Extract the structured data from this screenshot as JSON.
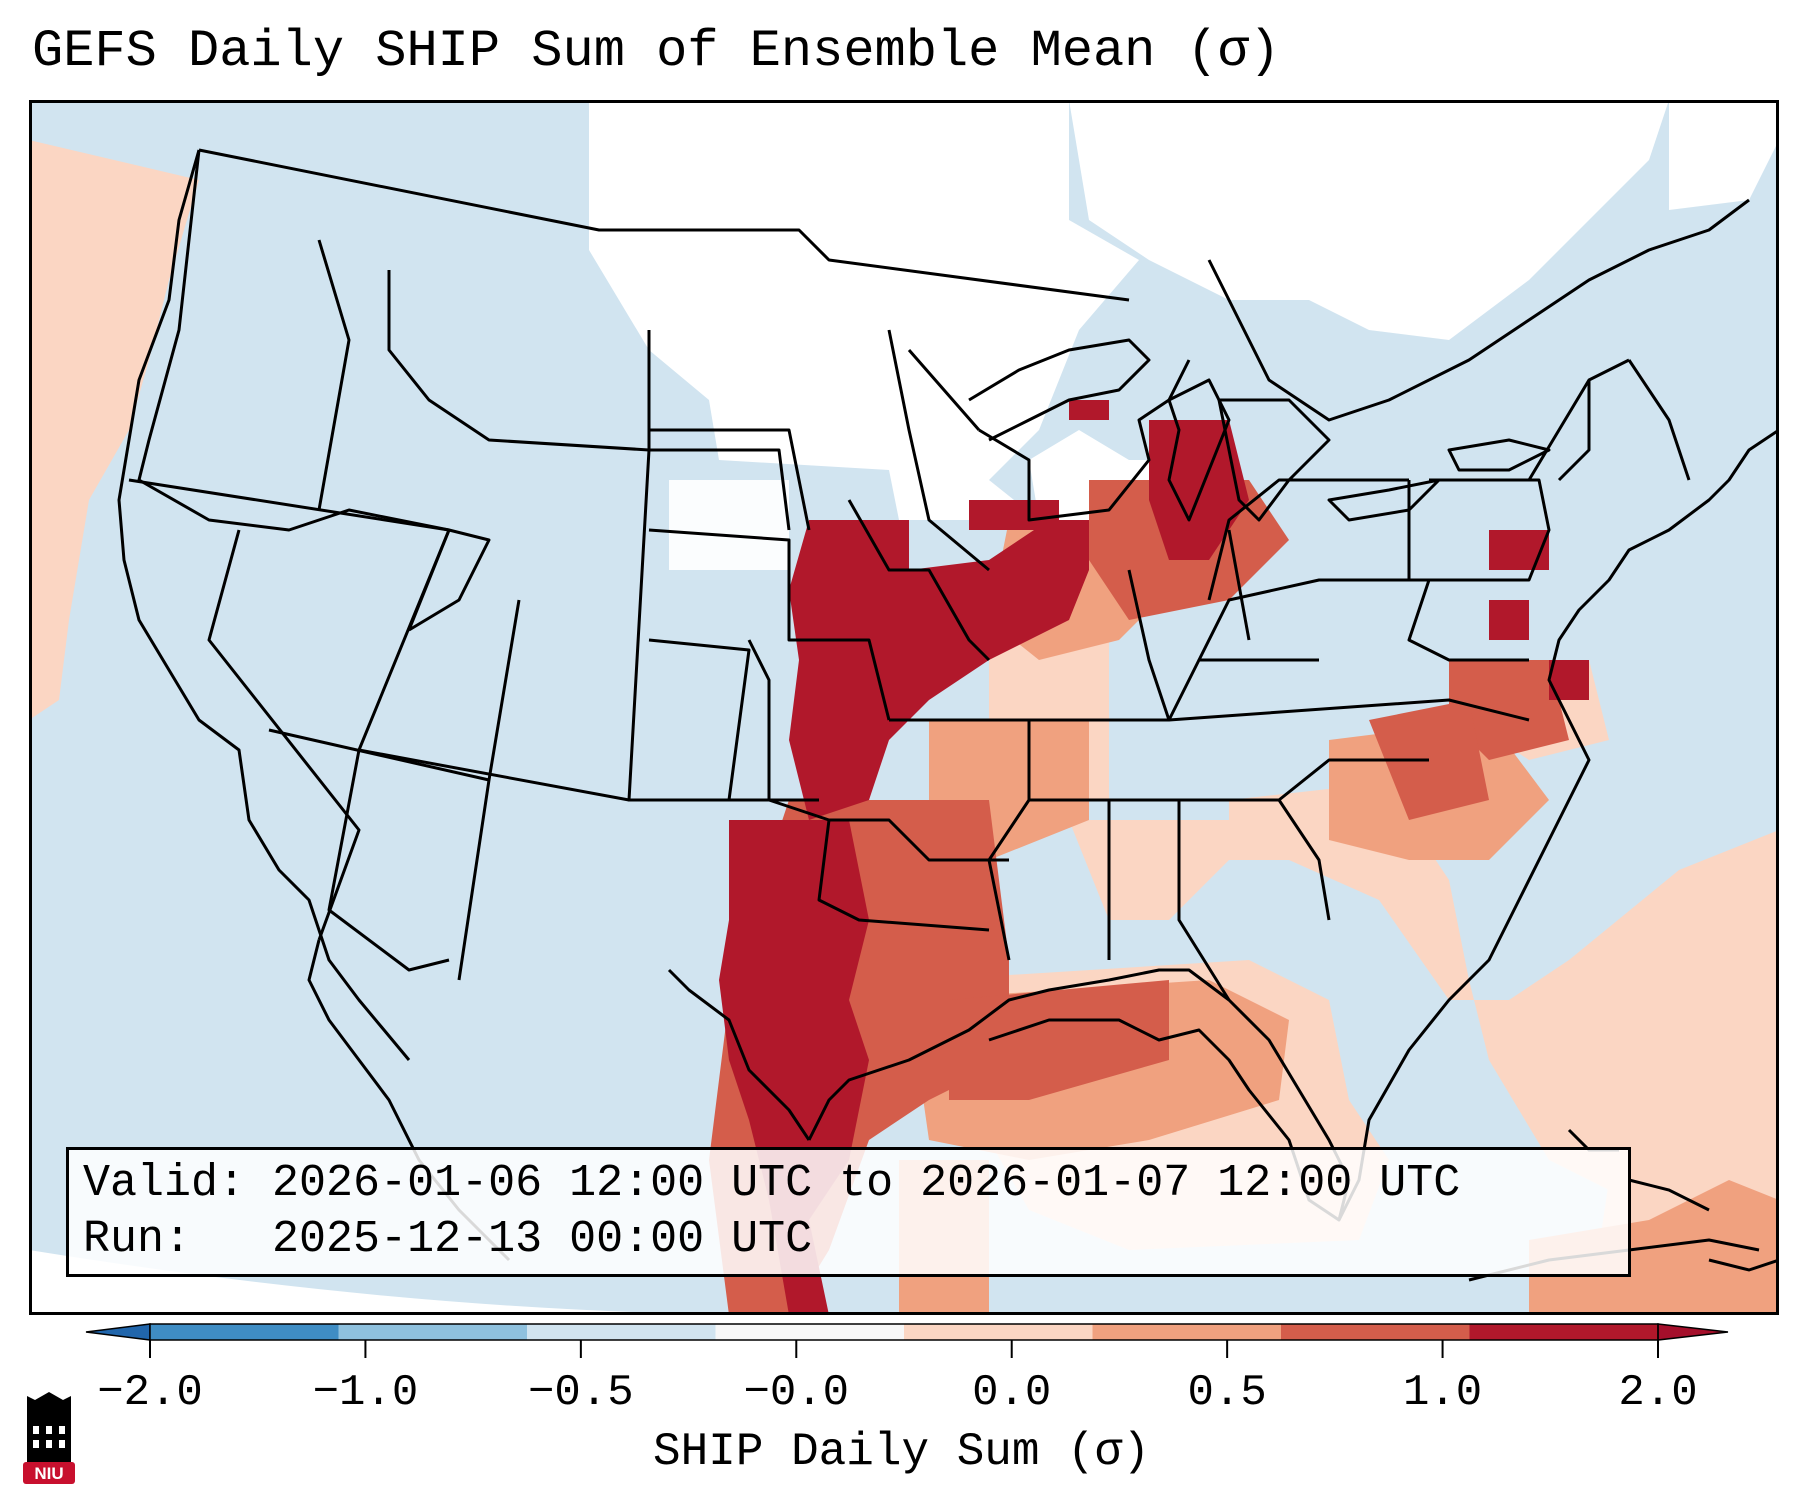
{
  "title": "GEFS Daily SHIP Sum of Ensemble Mean (σ)",
  "info": {
    "valid_label": "Valid:",
    "valid_value": "2026-01-06 12:00 UTC to 2026-01-07 12:00 UTC",
    "run_label": "Run:",
    "run_value": "2025-12-13 00:00 UTC"
  },
  "colorbar": {
    "title": "SHIP Daily Sum (σ)",
    "ticks": [
      "−2.0",
      "−1.0",
      "−0.5",
      "−0.0",
      "0.0",
      "0.5",
      "1.0",
      "2.0"
    ],
    "colors": [
      "#3f8dc4",
      "#8fc1de",
      "#d1e4f0",
      "#f7f7f7",
      "#fbd6c3",
      "#f0a17f",
      "#d45d4b",
      "#b1182b"
    ],
    "under_color": "#2166ac",
    "over_color": "#a50f2b"
  },
  "map": {
    "ocean_color": "#d1e4f0",
    "background_color": "#ffffff",
    "border_color": "#000000"
  },
  "logo": {
    "text": "NIU",
    "color": "#c8102e"
  }
}
